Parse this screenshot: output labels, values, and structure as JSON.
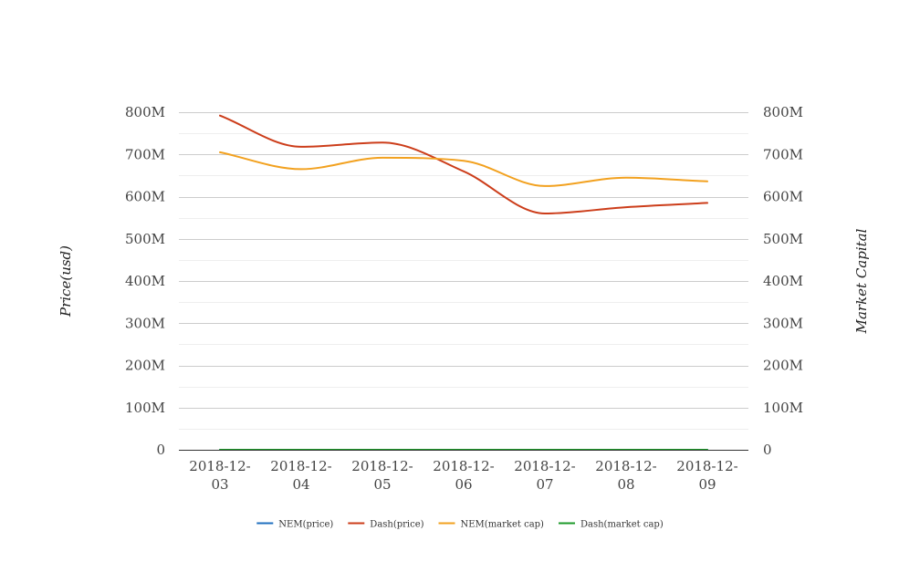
{
  "chart_data": {
    "type": "line",
    "categories": [
      "2018-12-03",
      "2018-12-04",
      "2018-12-05",
      "2018-12-06",
      "2018-12-07",
      "2018-12-08",
      "2018-12-09"
    ],
    "category_lines": [
      [
        "2018-12-",
        "03"
      ],
      [
        "2018-12-",
        "04"
      ],
      [
        "2018-12-",
        "05"
      ],
      [
        "2018-12-",
        "06"
      ],
      [
        "2018-12-",
        "07"
      ],
      [
        "2018-12-",
        "08"
      ],
      [
        "2018-12-",
        "09"
      ]
    ],
    "ylabel_left": "Price(usd)",
    "ylabel_right": "Market Capital",
    "ylim": [
      0,
      800000000
    ],
    "y_ticks": [
      0,
      100000000,
      200000000,
      300000000,
      400000000,
      500000000,
      600000000,
      700000000,
      800000000
    ],
    "y_tick_labels": [
      "0",
      "100M",
      "200M",
      "300M",
      "400M",
      "500M",
      "600M",
      "700M",
      "800M"
    ],
    "grid": true,
    "legend_position": "bottom",
    "smooth": true,
    "series": [
      {
        "name": "NEM(price)",
        "color": "#1f6fbf",
        "axis": "left",
        "values": [
          0.07,
          0.06,
          0.06,
          0.06,
          0.05,
          0.06,
          0.06
        ]
      },
      {
        "name": "Dash(price)",
        "color": "#cc3d1a",
        "axis": "right",
        "values": [
          792000000,
          718000000,
          728000000,
          660000000,
          560000000,
          575000000,
          585000000
        ]
      },
      {
        "name": "NEM(market cap)",
        "color": "#f2a11f",
        "axis": "right",
        "values": [
          705000000,
          665000000,
          692000000,
          685000000,
          625000000,
          645000000,
          636000000
        ]
      },
      {
        "name": "Dash(market cap)",
        "color": "#1c9a2a",
        "axis": "left",
        "values": [
          90,
          82,
          83,
          76,
          64,
          66,
          67
        ]
      }
    ]
  }
}
